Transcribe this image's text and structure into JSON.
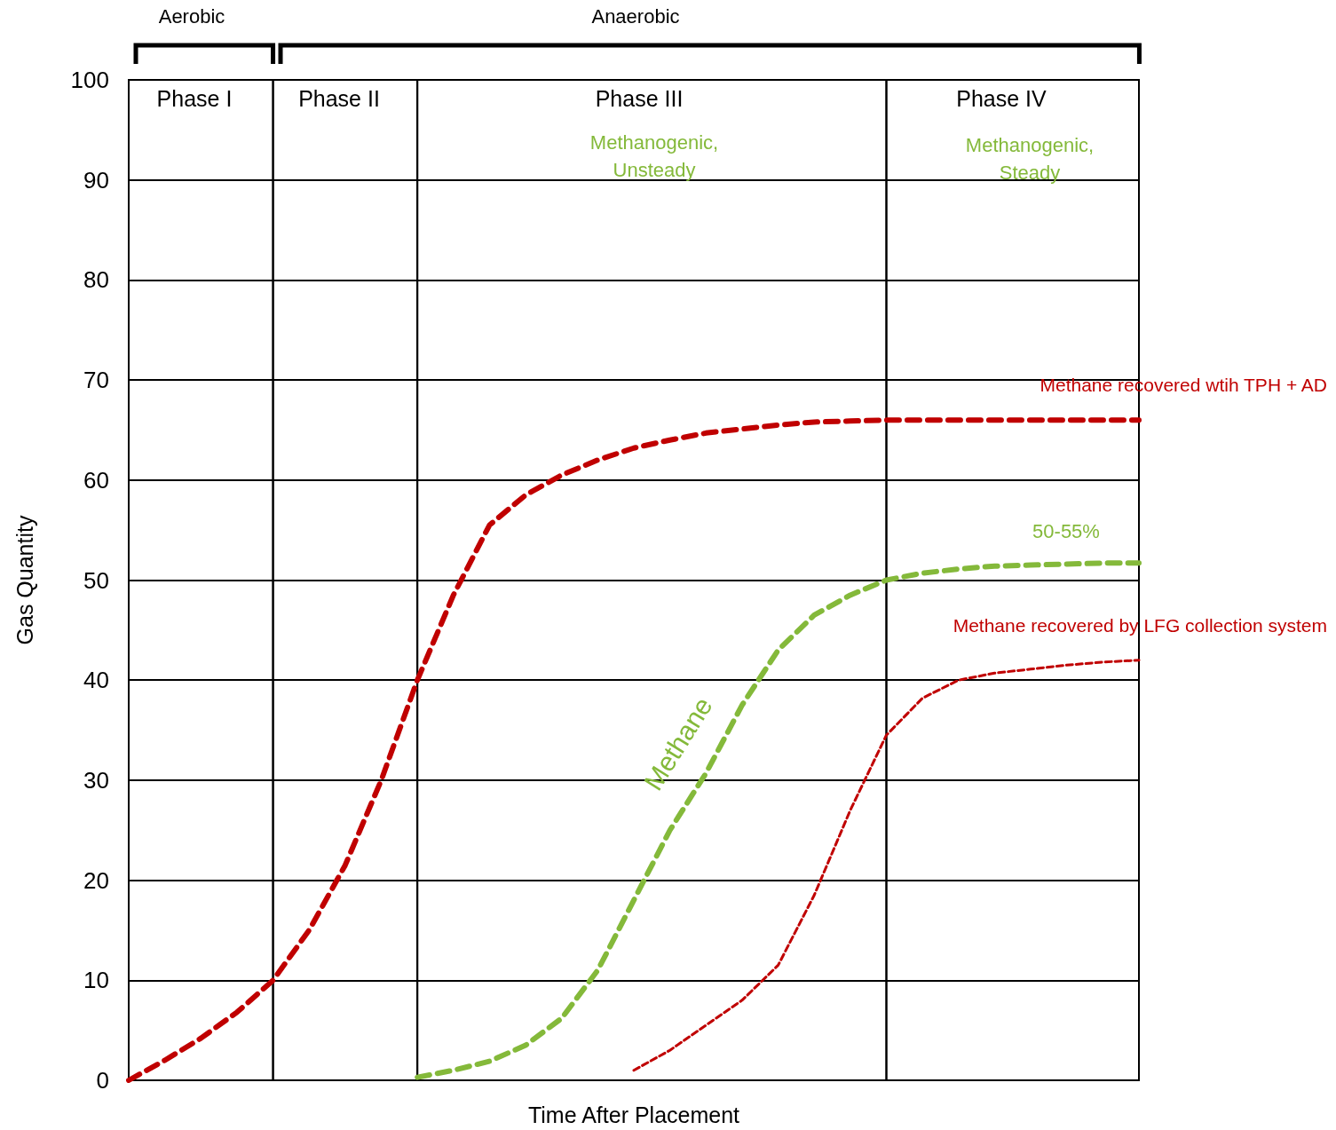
{
  "chart_data": {
    "type": "line",
    "xlabel": "Time After Placement",
    "ylabel": "Gas Quantity",
    "categories": [
      null,
      null,
      null,
      null,
      null,
      null,
      null,
      null,
      null,
      null,
      null,
      null,
      null,
      null,
      null,
      null,
      null,
      null,
      null,
      null,
      null,
      null,
      null,
      null,
      null,
      null,
      null,
      null,
      null
    ],
    "ylim": [
      0,
      100
    ],
    "yticks": [
      0,
      10,
      20,
      30,
      40,
      50,
      60,
      70,
      80,
      90,
      100
    ],
    "grid": "y",
    "legend": false,
    "marker": "none",
    "series": [
      {
        "name": "Methane recovered wtih TPH + AD",
        "color": "#c00000",
        "line_style": "dashed",
        "values": [
          0,
          2,
          4.2,
          6.8,
          10,
          15,
          21.5,
          30,
          40,
          48.5,
          55.5,
          58.5,
          60.5,
          62,
          63.2,
          64,
          64.7,
          65.1,
          65.5,
          65.8,
          65.9,
          66,
          66,
          66,
          66,
          66,
          66,
          66,
          66
        ]
      },
      {
        "name": "Methane",
        "color": "#84b93a",
        "line_style": "dashed",
        "values": [
          null,
          null,
          null,
          null,
          null,
          null,
          null,
          null,
          0.3,
          1,
          1.9,
          3.5,
          6.2,
          11,
          18,
          25,
          30.7,
          37.5,
          43,
          46.5,
          48.5,
          50,
          50.7,
          51.1,
          51.4,
          51.5,
          51.6,
          51.7,
          51.7
        ]
      },
      {
        "name": "Methane recovered by LFG collection system",
        "color": "#c00000",
        "line_style": "dotted",
        "values": [
          null,
          null,
          null,
          null,
          null,
          null,
          null,
          null,
          null,
          null,
          null,
          null,
          null,
          null,
          1,
          3,
          5.5,
          8,
          11.5,
          18.5,
          27,
          34.5,
          38.2,
          40,
          40.7,
          41.1,
          41.5,
          41.8,
          42
        ]
      }
    ],
    "annotations": [
      "Aerobic",
      "Anaerobic",
      "Phase I",
      "Phase II",
      "Phase III",
      "Methanogenic, Unsteady",
      "Phase IV",
      "Methanogenic, Steady",
      "50-55%"
    ]
  }
}
